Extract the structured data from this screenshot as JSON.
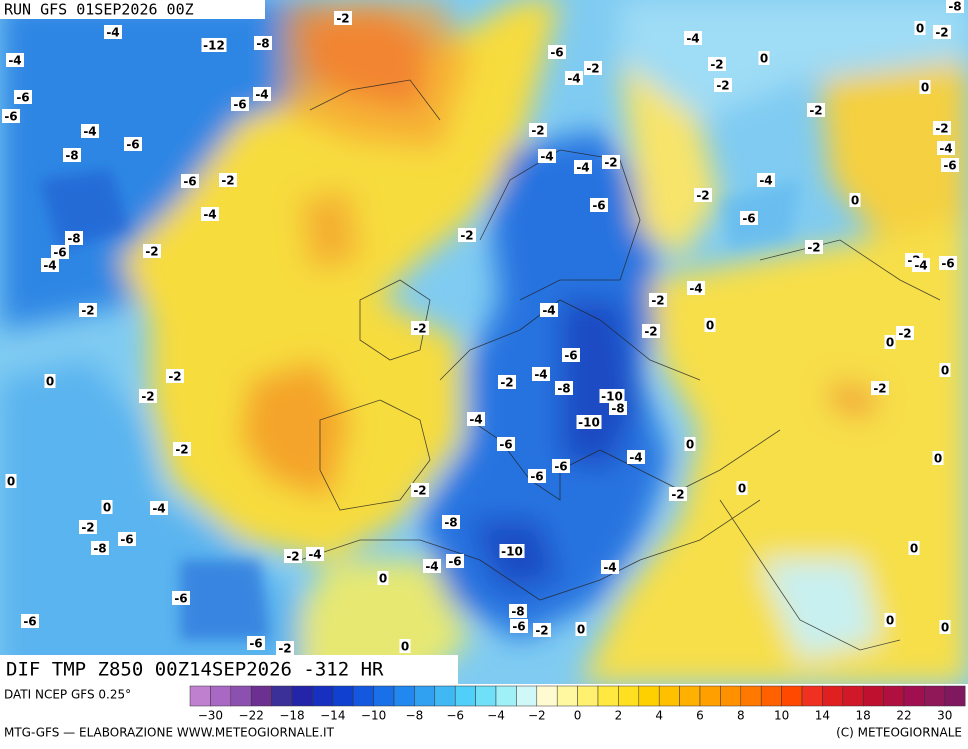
{
  "header": {
    "run": "RUN GFS 01SEP2026 00Z"
  },
  "map": {
    "title": "DIF TMP Z850 00Z14SEP2026 -312 HR",
    "contour_labels": [
      "-2",
      "-4",
      "-12",
      "-8",
      "-4",
      "-6",
      "-6",
      "-4",
      "-6",
      "-4",
      "-6",
      "-8",
      "-6",
      "-2",
      "-4",
      "-8",
      "-6",
      "-4",
      "-2",
      "-2",
      "0",
      "-2",
      "-2",
      "-2",
      "0",
      "0",
      "-4",
      "-2",
      "-8",
      "-6",
      "-2",
      "-4",
      "0",
      "-6",
      "-6",
      "-6",
      "-2",
      "0",
      "-2",
      "-2",
      "-2",
      "-4",
      "-6",
      "-4",
      "-6",
      "-4",
      "-2",
      "-8",
      "-10",
      "-8",
      "-4",
      "-10",
      "-6",
      "-6",
      "-6",
      "-4",
      "-2",
      "-8",
      "-10",
      "-6",
      "-4",
      "-4",
      "-8",
      "-6",
      "-2",
      "0",
      "-4",
      "0",
      "-2",
      "-2",
      "-6",
      "-4",
      "-2",
      "-2",
      "0",
      "-2",
      "-4",
      "-6",
      "-4",
      "-2",
      "-6",
      "0",
      "-2",
      "-4",
      "-2",
      "0",
      "-2",
      "-2",
      "0",
      "-2",
      "0",
      "0",
      "-2",
      "0",
      "0",
      "0",
      "0",
      "0",
      "-2",
      "-4",
      "-6",
      "-8",
      "-2",
      "0",
      "-2",
      "-4"
    ]
  },
  "colorbar": {
    "source": "DATI NCEP GFS 0.25°",
    "labels": [
      "−30",
      "−22",
      "−18",
      "−14",
      "−10",
      "−8",
      "−6",
      "−4",
      "−2",
      "0",
      "2",
      "4",
      "6",
      "8",
      "10",
      "14",
      "18",
      "22",
      "30"
    ]
  },
  "footer": {
    "left": "MTG-GFS — ELABORAZIONE WWW.METEOGIORNALE.IT",
    "right": "(C) METEOGIORNALE"
  }
}
